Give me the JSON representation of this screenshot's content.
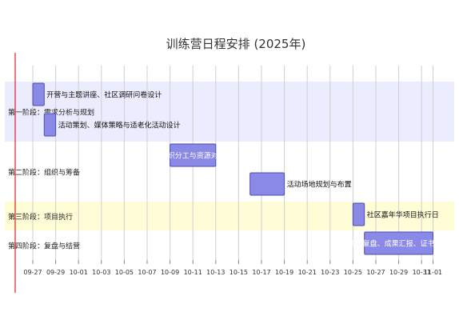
{
  "chart_data": {
    "type": "gantt",
    "title": "训练营日程安排 (2025年)",
    "x_axis": {
      "unit": "date",
      "range": [
        "2025-09-26",
        "2025-11-02"
      ],
      "tick_labels": [
        "09-27",
        "09-29",
        "10-01",
        "10-03",
        "10-05",
        "10-07",
        "10-09",
        "10-11",
        "10-13",
        "10-15",
        "10-17",
        "10-19",
        "10-21",
        "10-23",
        "10-25",
        "10-27",
        "10-29",
        "10-31",
        "11-01"
      ],
      "tick_dates": [
        "2025-09-27",
        "2025-09-29",
        "2025-10-01",
        "2025-10-03",
        "2025-10-05",
        "2025-10-07",
        "2025-10-09",
        "2025-10-11",
        "2025-10-13",
        "2025-10-15",
        "2025-10-17",
        "2025-10-19",
        "2025-10-21",
        "2025-10-23",
        "2025-10-25",
        "2025-10-27",
        "2025-10-29",
        "2025-10-31",
        "2025-11-01"
      ],
      "grid": true
    },
    "today_marker": "2025-09-27",
    "sections": [
      {
        "name": "第一阶段：需求分析与规划",
        "color": "#ececff"
      },
      {
        "name": "第二阶段：组织与筹备",
        "color": "#ffffff"
      },
      {
        "name": "第三阶段：项目执行",
        "color": "#fffdd6"
      },
      {
        "name": "第四阶段：复盘与结营",
        "color": "#ffffff"
      }
    ],
    "tasks": [
      {
        "section": 0,
        "label": "开营与主题讲座、社区调研问卷设计",
        "start": "2025-09-27",
        "end": "2025-09-28",
        "label_position": "outside"
      },
      {
        "section": 0,
        "label": "活动策划、媒体策略与适老化活动设计",
        "start": "2025-09-28",
        "end": "2025-09-29",
        "label_position": "outside"
      },
      {
        "section": 1,
        "label": "组织分工与资源对接",
        "start": "2025-10-09",
        "end": "2025-10-13",
        "label_position": "inside"
      },
      {
        "section": 1,
        "label": "活动场地规划与布置",
        "start": "2025-10-16",
        "end": "2025-10-19",
        "label_position": "outside"
      },
      {
        "section": 2,
        "label": "社区嘉年华项目执行日",
        "start": "2025-10-25",
        "end": "2025-10-26",
        "label_position": "outside"
      },
      {
        "section": 3,
        "label": "项目复盘、成果汇报、证书颁发",
        "start": "2025-10-26",
        "end": "2025-11-01",
        "label_position": "inside"
      }
    ],
    "colors": {
      "bar_fill": "#8a8ae6",
      "bar_stroke": "#4b4bb6",
      "grid": "#cfcfcf",
      "today": "#e02020"
    }
  }
}
